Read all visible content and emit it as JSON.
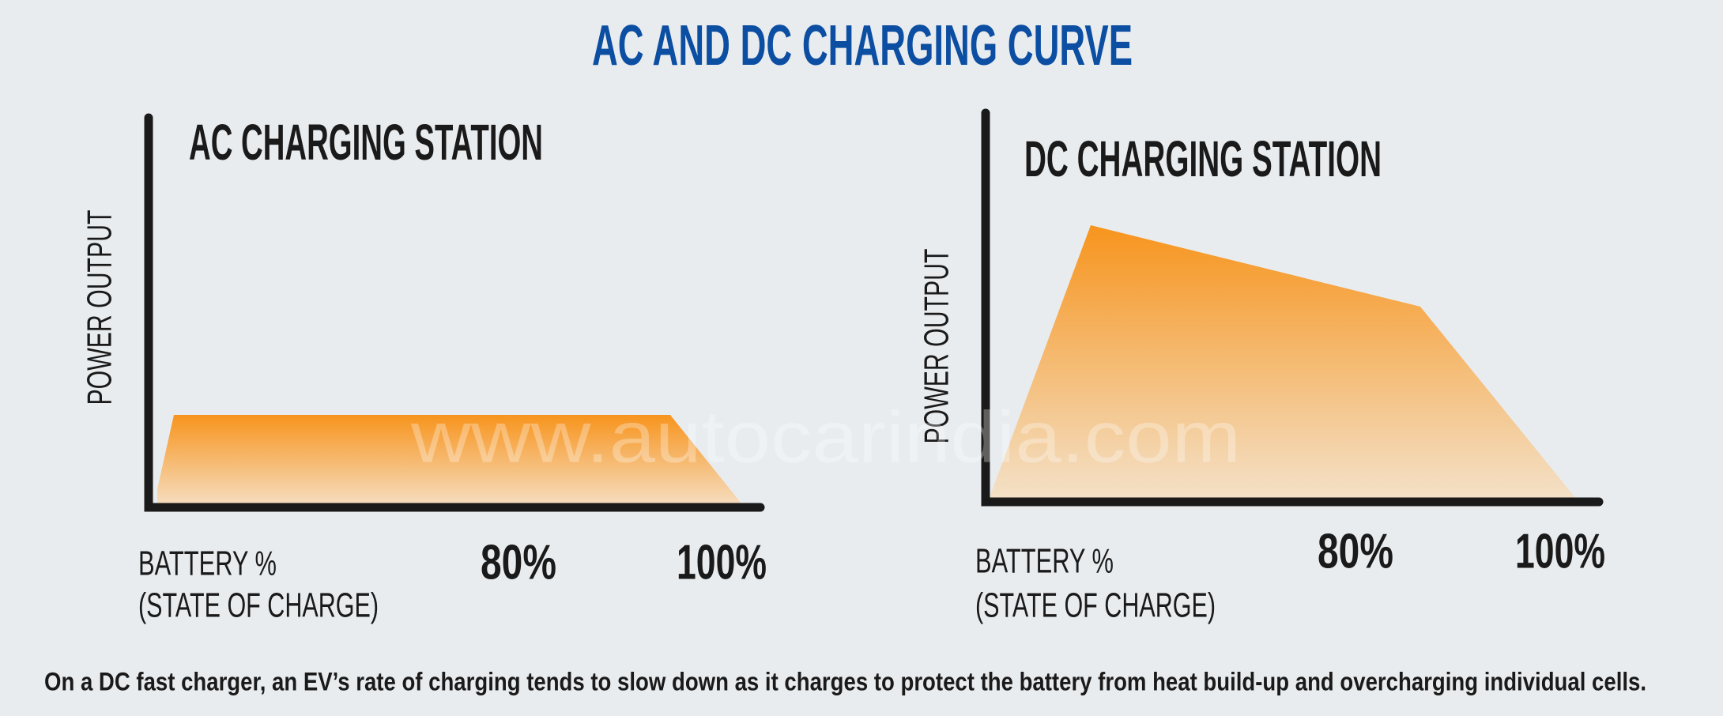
{
  "title": "AC AND DC CHARGING CURVE",
  "panels": [
    {
      "title": "AC CHARGING STATION",
      "y_label": "POWER OUTPUT",
      "x_label": [
        "BATTERY %",
        "(STATE OF CHARGE)"
      ],
      "ticks": [
        "80%",
        "100%"
      ]
    },
    {
      "title": "DC CHARGING STATION",
      "y_label": "POWER OUTPUT",
      "x_label": [
        "BATTERY %",
        "(STATE OF CHARGE)"
      ],
      "ticks": [
        "80%",
        "100%"
      ]
    }
  ],
  "watermark": "www.autocarindia.com",
  "caption": "On a DC fast charger, an EV’s rate of charging tends to  slow down as it charges to protect the battery from heat build-up and overcharging individual cells."
}
